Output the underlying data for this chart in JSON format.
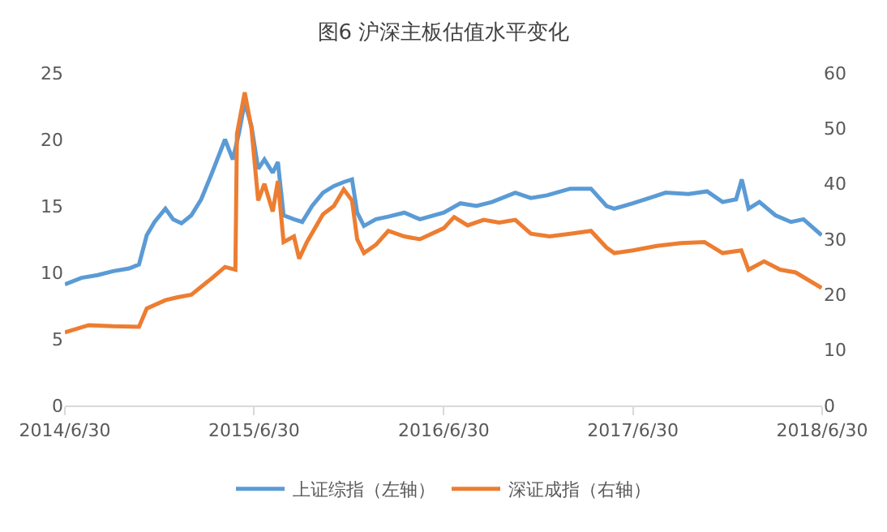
{
  "chart_data": {
    "type": "line",
    "title": "图6 沪深主板估值水平变化",
    "xlim": [
      "2014-06-30",
      "2018-06-30"
    ],
    "xticks": [
      {
        "value": "2014-06-30",
        "label": "2014/6/30"
      },
      {
        "value": "2015-06-30",
        "label": "2015/6/30"
      },
      {
        "value": "2016-06-30",
        "label": "2016/6/30"
      },
      {
        "value": "2017-06-30",
        "label": "2017/6/30"
      },
      {
        "value": "2018-06-30",
        "label": "2018/6/30"
      }
    ],
    "ylim": [
      0,
      25
    ],
    "yticks": [
      0,
      5,
      10,
      15,
      20,
      25
    ],
    "y2lim": [
      0,
      60
    ],
    "y2ticks": [
      0,
      10,
      20,
      30,
      40,
      50,
      60
    ],
    "grid": false,
    "legend": "bottom",
    "series": [
      {
        "name": "上证综指（左轴）",
        "color": "#5b9bd5",
        "x": [
          "2014-06-30",
          "2014-08-01",
          "2014-09-01",
          "2014-10-01",
          "2014-11-01",
          "2014-11-20",
          "2014-12-05",
          "2014-12-20",
          "2015-01-10",
          "2015-01-25",
          "2015-02-10",
          "2015-03-01",
          "2015-03-20",
          "2015-04-10",
          "2015-05-05",
          "2015-05-20",
          "2015-06-01",
          "2015-06-12",
          "2015-06-25",
          "2015-07-08",
          "2015-07-20",
          "2015-08-05",
          "2015-08-15",
          "2015-08-26",
          "2015-09-15",
          "2015-10-01",
          "2015-10-20",
          "2015-11-10",
          "2015-12-01",
          "2015-12-20",
          "2016-01-05",
          "2016-01-15",
          "2016-01-28",
          "2016-02-20",
          "2016-03-15",
          "2016-04-15",
          "2016-05-15",
          "2016-06-30",
          "2016-08-01",
          "2016-09-01",
          "2016-10-01",
          "2016-11-15",
          "2016-12-15",
          "2017-01-15",
          "2017-03-01",
          "2017-04-10",
          "2017-05-10",
          "2017-05-25",
          "2017-06-30",
          "2017-08-01",
          "2017-09-01",
          "2017-10-15",
          "2017-11-20",
          "2017-12-20",
          "2018-01-15",
          "2018-01-26",
          "2018-02-08",
          "2018-03-01",
          "2018-04-01",
          "2018-05-01",
          "2018-05-25",
          "2018-06-29"
        ],
        "values": [
          9.1,
          9.6,
          9.8,
          10.1,
          10.3,
          10.6,
          12.8,
          13.8,
          14.8,
          14.0,
          13.7,
          14.3,
          15.5,
          17.5,
          20.0,
          18.5,
          20.5,
          22.8,
          21.0,
          17.8,
          18.5,
          17.5,
          18.3,
          14.3,
          14.0,
          13.8,
          15.0,
          16.0,
          16.5,
          16.8,
          17.0,
          14.5,
          13.5,
          14.0,
          14.2,
          14.5,
          14.0,
          14.5,
          15.2,
          15.0,
          15.3,
          16.0,
          15.6,
          15.8,
          16.3,
          16.3,
          15.0,
          14.8,
          15.2,
          15.6,
          16.0,
          15.9,
          16.1,
          15.3,
          15.5,
          17.0,
          14.8,
          15.3,
          14.3,
          13.8,
          14.0,
          12.8
        ]
      },
      {
        "name": "深证成指（右轴）",
        "color": "#ed7d31",
        "axis": "y2",
        "x": [
          "2014-06-30",
          "2014-08-15",
          "2014-10-01",
          "2014-11-20",
          "2014-12-05",
          "2015-01-10",
          "2015-02-01",
          "2015-03-01",
          "2015-04-10",
          "2015-05-05",
          "2015-05-25",
          "2015-05-28",
          "2015-06-12",
          "2015-06-25",
          "2015-07-08",
          "2015-07-20",
          "2015-08-05",
          "2015-08-15",
          "2015-08-26",
          "2015-09-15",
          "2015-09-25",
          "2015-10-10",
          "2015-11-10",
          "2015-12-01",
          "2015-12-20",
          "2016-01-05",
          "2016-01-15",
          "2016-01-28",
          "2016-02-20",
          "2016-03-15",
          "2016-04-15",
          "2016-05-15",
          "2016-06-30",
          "2016-07-20",
          "2016-08-15",
          "2016-09-15",
          "2016-10-15",
          "2016-11-15",
          "2016-12-15",
          "2017-01-20",
          "2017-03-01",
          "2017-04-10",
          "2017-05-10",
          "2017-05-25",
          "2017-06-30",
          "2017-08-15",
          "2017-10-01",
          "2017-11-15",
          "2017-12-20",
          "2018-01-25",
          "2018-02-08",
          "2018-03-10",
          "2018-04-10",
          "2018-05-10",
          "2018-06-29"
        ],
        "values": [
          13.2,
          14.5,
          14.3,
          14.2,
          17.5,
          19.0,
          19.5,
          20.0,
          23.0,
          25.0,
          24.5,
          49,
          56.5,
          50,
          37,
          40,
          35,
          40.5,
          29.5,
          30.5,
          26.5,
          29.5,
          34.5,
          36,
          39,
          37,
          30,
          27.5,
          29,
          31.5,
          30.5,
          30,
          32,
          34,
          32.5,
          33.5,
          33.0,
          33.5,
          31.0,
          30.5,
          31.0,
          31.5,
          28.5,
          27.5,
          28.0,
          28.8,
          29.3,
          29.5,
          27.5,
          28.0,
          24.5,
          26.0,
          24.5,
          24.0,
          21.2
        ]
      }
    ]
  }
}
